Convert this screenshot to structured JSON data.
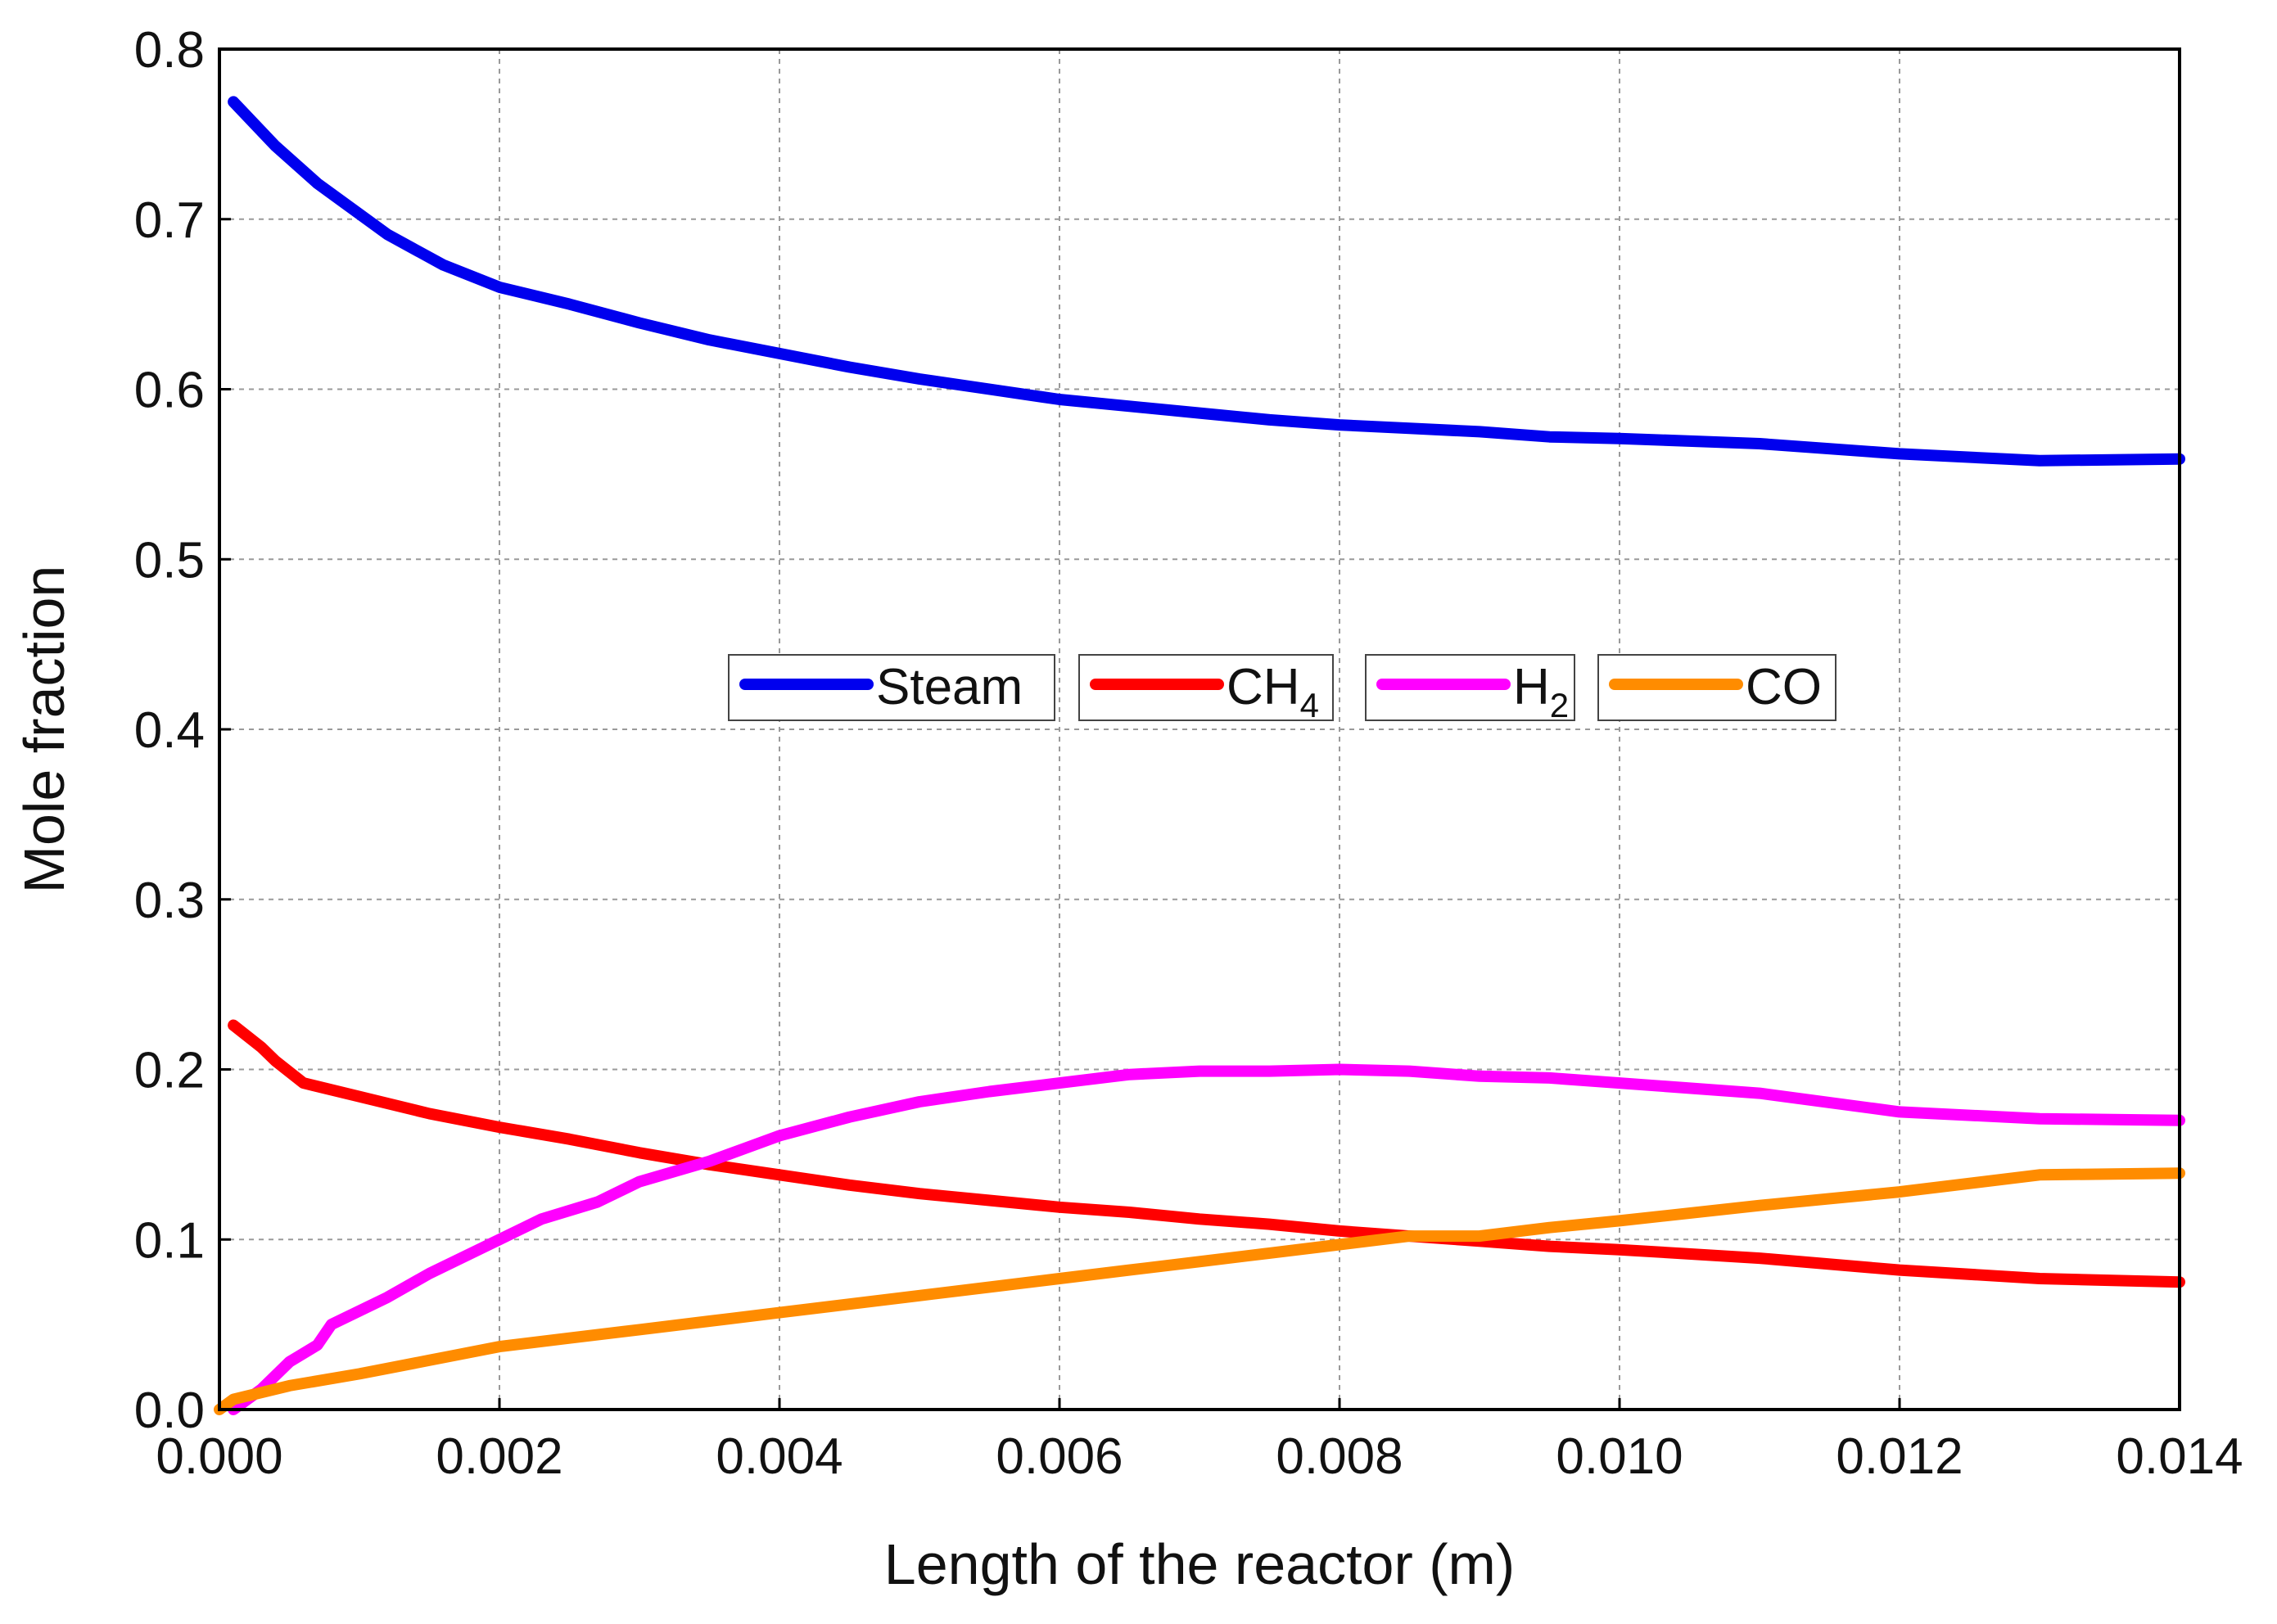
{
  "chart_data": {
    "type": "line",
    "title": "",
    "xlabel": "Length of the reactor (m)",
    "ylabel": "Mole fraction",
    "xlim": [
      0.0,
      0.014
    ],
    "ylim": [
      0.0,
      0.8
    ],
    "grid": true,
    "legend_position": "center",
    "xticks": [
      "0.000",
      "0.002",
      "0.004",
      "0.006",
      "0.008",
      "0.010",
      "0.012",
      "0.014"
    ],
    "yticks": [
      "0.0",
      "0.1",
      "0.2",
      "0.3",
      "0.4",
      "0.5",
      "0.6",
      "0.7",
      "0.8"
    ],
    "series": [
      {
        "name": "Steam",
        "name_main": "Steam",
        "name_sub": "",
        "color": "#0000ee",
        "points": [
          [
            0.0001,
            0.769
          ],
          [
            0.0004,
            0.743
          ],
          [
            0.0007,
            0.721
          ],
          [
            0.0012,
            0.691
          ],
          [
            0.0016,
            0.673
          ],
          [
            0.002,
            0.66
          ],
          [
            0.0025,
            0.65
          ],
          [
            0.003,
            0.639
          ],
          [
            0.0035,
            0.629
          ],
          [
            0.004,
            0.621
          ],
          [
            0.0045,
            0.613
          ],
          [
            0.005,
            0.606
          ],
          [
            0.0055,
            0.6
          ],
          [
            0.006,
            0.594
          ],
          [
            0.0065,
            0.59
          ],
          [
            0.007,
            0.586
          ],
          [
            0.0075,
            0.582
          ],
          [
            0.008,
            0.579
          ],
          [
            0.0085,
            0.577
          ],
          [
            0.009,
            0.575
          ],
          [
            0.0095,
            0.572
          ],
          [
            0.01,
            0.571
          ],
          [
            0.011,
            0.568
          ],
          [
            0.012,
            0.562
          ],
          [
            0.013,
            0.558
          ],
          [
            0.014,
            0.559
          ]
        ]
      },
      {
        "name": "CH4",
        "name_main": "CH",
        "name_sub": "4",
        "color": "#ff0000",
        "points": [
          [
            0.0001,
            0.226
          ],
          [
            0.0003,
            0.213
          ],
          [
            0.0004,
            0.205
          ],
          [
            0.0006,
            0.192
          ],
          [
            0.001,
            0.184
          ],
          [
            0.0015,
            0.174
          ],
          [
            0.002,
            0.166
          ],
          [
            0.0025,
            0.159
          ],
          [
            0.003,
            0.151
          ],
          [
            0.0035,
            0.144
          ],
          [
            0.004,
            0.138
          ],
          [
            0.0045,
            0.132
          ],
          [
            0.005,
            0.127
          ],
          [
            0.0055,
            0.123
          ],
          [
            0.006,
            0.119
          ],
          [
            0.0065,
            0.116
          ],
          [
            0.007,
            0.112
          ],
          [
            0.0075,
            0.109
          ],
          [
            0.008,
            0.105
          ],
          [
            0.0085,
            0.102
          ],
          [
            0.009,
            0.099
          ],
          [
            0.0095,
            0.096
          ],
          [
            0.01,
            0.094
          ],
          [
            0.011,
            0.089
          ],
          [
            0.012,
            0.082
          ],
          [
            0.013,
            0.077
          ],
          [
            0.014,
            0.075
          ]
        ]
      },
      {
        "name": "H2",
        "name_main": "H",
        "name_sub": "2",
        "color": "#ff00ff",
        "points": [
          [
            0.0001,
            0.0
          ],
          [
            0.0003,
            0.012
          ],
          [
            0.0005,
            0.028
          ],
          [
            0.0007,
            0.038
          ],
          [
            0.0008,
            0.05
          ],
          [
            0.0012,
            0.066
          ],
          [
            0.0015,
            0.08
          ],
          [
            0.002,
            0.1
          ],
          [
            0.0023,
            0.112
          ],
          [
            0.0027,
            0.122
          ],
          [
            0.003,
            0.134
          ],
          [
            0.0035,
            0.146
          ],
          [
            0.004,
            0.161
          ],
          [
            0.0045,
            0.172
          ],
          [
            0.005,
            0.181
          ],
          [
            0.0055,
            0.187
          ],
          [
            0.006,
            0.192
          ],
          [
            0.0065,
            0.197
          ],
          [
            0.007,
            0.199
          ],
          [
            0.0075,
            0.199
          ],
          [
            0.008,
            0.2
          ],
          [
            0.0085,
            0.199
          ],
          [
            0.009,
            0.196
          ],
          [
            0.0095,
            0.195
          ],
          [
            0.01,
            0.192
          ],
          [
            0.011,
            0.186
          ],
          [
            0.012,
            0.175
          ],
          [
            0.013,
            0.171
          ],
          [
            0.014,
            0.17
          ]
        ]
      },
      {
        "name": "CO",
        "name_main": "CO",
        "name_sub": "",
        "color": "#ff8c00",
        "points": [
          [
            0.0,
            0.0
          ],
          [
            0.0001,
            0.006
          ],
          [
            0.0005,
            0.014
          ],
          [
            0.001,
            0.021
          ],
          [
            0.0015,
            0.029
          ],
          [
            0.002,
            0.037
          ],
          [
            0.0025,
            0.042
          ],
          [
            0.003,
            0.047
          ],
          [
            0.0035,
            0.052
          ],
          [
            0.004,
            0.057
          ],
          [
            0.0045,
            0.062
          ],
          [
            0.005,
            0.067
          ],
          [
            0.0055,
            0.072
          ],
          [
            0.006,
            0.077
          ],
          [
            0.0065,
            0.082
          ],
          [
            0.007,
            0.087
          ],
          [
            0.0075,
            0.092
          ],
          [
            0.008,
            0.097
          ],
          [
            0.0085,
            0.102
          ],
          [
            0.009,
            0.102
          ],
          [
            0.0095,
            0.107
          ],
          [
            0.01,
            0.111
          ],
          [
            0.011,
            0.12
          ],
          [
            0.012,
            0.128
          ],
          [
            0.013,
            0.138
          ],
          [
            0.014,
            0.139
          ]
        ]
      }
    ]
  }
}
